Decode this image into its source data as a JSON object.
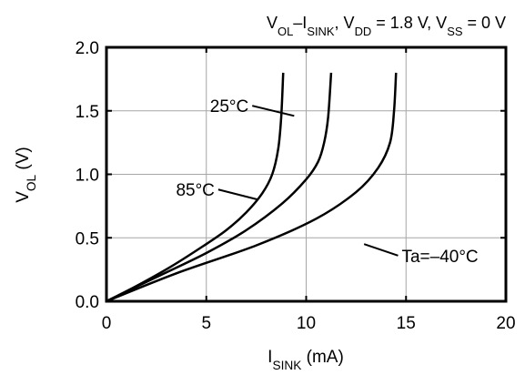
{
  "chart_data": {
    "type": "line",
    "title": {
      "parts": [
        {
          "text": "V"
        },
        {
          "text": "OL",
          "sub": true
        },
        {
          "text": "–I"
        },
        {
          "text": "SINK",
          "sub": true
        },
        {
          "text": ", V"
        },
        {
          "text": "DD",
          "sub": true
        },
        {
          "text": " = 1.8 V, V"
        },
        {
          "text": "SS",
          "sub": true
        },
        {
          "text": " = 0 V"
        }
      ]
    },
    "xlabel": {
      "parts": [
        {
          "text": "I"
        },
        {
          "text": "SINK",
          "sub": true
        },
        {
          "text": " (mA)"
        }
      ]
    },
    "ylabel": {
      "parts": [
        {
          "text": "V"
        },
        {
          "text": "OL",
          "sub": true
        },
        {
          "text": " (V)"
        }
      ]
    },
    "xlim": [
      0,
      20
    ],
    "ylim": [
      0,
      2.0
    ],
    "xticks": [
      {
        "v": 0,
        "label": "0"
      },
      {
        "v": 5,
        "label": "5"
      },
      {
        "v": 10,
        "label": "10"
      },
      {
        "v": 15,
        "label": "15"
      },
      {
        "v": 20,
        "label": "20"
      }
    ],
    "yticks": [
      {
        "v": 0,
        "label": "0.0"
      },
      {
        "v": 0.5,
        "label": "0.5"
      },
      {
        "v": 1.0,
        "label": "1.0"
      },
      {
        "v": 1.5,
        "label": "1.5"
      },
      {
        "v": 2.0,
        "label": "2.0"
      }
    ],
    "grid": true,
    "series": [
      {
        "name": "85°C",
        "points": [
          [
            0,
            0
          ],
          [
            1.5,
            0.12
          ],
          [
            3.2,
            0.27
          ],
          [
            4.8,
            0.43
          ],
          [
            6.0,
            0.56
          ],
          [
            7.0,
            0.7
          ],
          [
            7.8,
            0.85
          ],
          [
            8.3,
            1.0
          ],
          [
            8.6,
            1.2
          ],
          [
            8.75,
            1.45
          ],
          [
            8.85,
            1.8
          ]
        ]
      },
      {
        "name": "25°C",
        "points": [
          [
            0,
            0
          ],
          [
            2.5,
            0.19
          ],
          [
            5.0,
            0.38
          ],
          [
            7.0,
            0.56
          ],
          [
            8.8,
            0.77
          ],
          [
            10.0,
            0.96
          ],
          [
            10.6,
            1.1
          ],
          [
            10.9,
            1.25
          ],
          [
            11.1,
            1.45
          ],
          [
            11.25,
            1.8
          ]
        ]
      },
      {
        "name": "Ta=–40°C",
        "points": [
          [
            0,
            0
          ],
          [
            3.5,
            0.22
          ],
          [
            7.5,
            0.44
          ],
          [
            10.5,
            0.65
          ],
          [
            12.5,
            0.86
          ],
          [
            13.6,
            1.05
          ],
          [
            14.2,
            1.25
          ],
          [
            14.4,
            1.5
          ],
          [
            14.5,
            1.8
          ]
        ]
      }
    ],
    "annotations": [
      {
        "text": "25°C",
        "series": "25°C",
        "label_at": [
          9.4,
          1.46
        ],
        "leader_from": [
          7.3,
          1.54
        ],
        "anchor": "end"
      },
      {
        "text": "85°C",
        "series": "85°C",
        "label_at": [
          7.6,
          0.8
        ],
        "leader_from": [
          5.6,
          0.88
        ],
        "anchor": "end"
      },
      {
        "text": "Ta=–40°C",
        "series": "Ta=–40°C",
        "label_at": [
          12.9,
          0.45
        ],
        "leader_from": [
          14.6,
          0.36
        ],
        "anchor": "start"
      }
    ]
  }
}
